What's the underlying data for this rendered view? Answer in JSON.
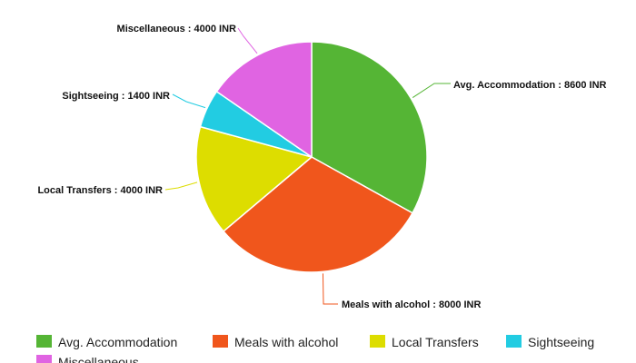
{
  "chart_data": {
    "type": "pie",
    "title": "",
    "unit": "INR",
    "legend_position": "bottom",
    "slices": [
      {
        "name": "Avg. Accommodation",
        "value": 8600,
        "label": "Avg. Accommodation : 8600 INR",
        "color": "#55b535"
      },
      {
        "name": "Meals with alcohol",
        "value": 8000,
        "label": "Meals with alcohol : 8000 INR",
        "color": "#f0561c"
      },
      {
        "name": "Local Transfers",
        "value": 4000,
        "label": "Local Transfers : 4000 INR",
        "color": "#dddd00"
      },
      {
        "name": "Sightseeing",
        "value": 1400,
        "label": "Sightseeing : 1400 INR",
        "color": "#22cce2"
      },
      {
        "name": "Miscellaneous",
        "value": 4000,
        "label": "Miscellaneous : 4000 INR",
        "color": "#e064e2"
      }
    ]
  }
}
